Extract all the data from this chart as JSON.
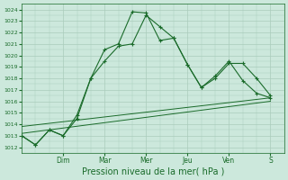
{
  "title": "",
  "xlabel": "Pression niveau de la mer( hPa )",
  "ylabel": "",
  "bg_color": "#cce8dc",
  "grid_color": "#aaccbb",
  "line_color": "#1a6b2a",
  "ylim": [
    1011.5,
    1024.5
  ],
  "yticks": [
    1012,
    1013,
    1014,
    1015,
    1016,
    1017,
    1018,
    1019,
    1020,
    1021,
    1022,
    1023,
    1024
  ],
  "day_labels": [
    "Dim",
    "Mar",
    "Mer",
    "Jeu",
    "Ven",
    "S"
  ],
  "day_positions": [
    12,
    24,
    36,
    48,
    60,
    72
  ],
  "xlim": [
    0,
    76
  ],
  "series1_x": [
    0,
    4,
    8,
    12,
    16,
    20,
    24,
    28,
    32,
    36,
    40,
    44,
    48,
    52,
    56,
    60,
    64,
    68,
    72
  ],
  "series1_y": [
    1013.0,
    1012.2,
    1013.5,
    1013.0,
    1014.8,
    1018.0,
    1019.5,
    1020.8,
    1021.0,
    1023.5,
    1022.5,
    1021.5,
    1019.2,
    1017.2,
    1018.0,
    1019.3,
    1019.3,
    1018.0,
    1016.5
  ],
  "series2_x": [
    0,
    4,
    8,
    12,
    16,
    20,
    24,
    28,
    32,
    36,
    40,
    44,
    48,
    52,
    56,
    60,
    64,
    68,
    72
  ],
  "series2_y": [
    1013.0,
    1012.2,
    1013.5,
    1013.0,
    1014.5,
    1018.0,
    1020.5,
    1021.0,
    1023.8,
    1023.7,
    1021.3,
    1021.5,
    1019.2,
    1017.2,
    1018.2,
    1019.5,
    1017.8,
    1016.7,
    1016.3
  ],
  "trend1_x": [
    0,
    72
  ],
  "trend1_y": [
    1013.2,
    1016.0
  ],
  "trend2_x": [
    0,
    72
  ],
  "trend2_y": [
    1013.8,
    1016.3
  ],
  "xlabel_fontsize": 7,
  "ytick_fontsize": 4.5,
  "xtick_fontsize": 5.5
}
